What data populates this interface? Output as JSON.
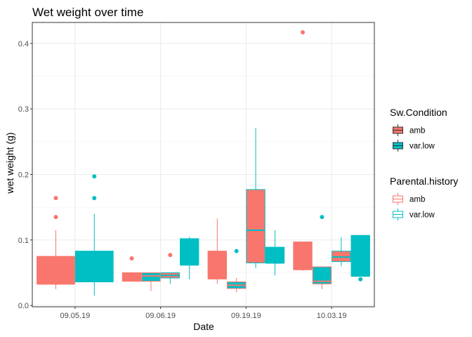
{
  "chart_data": {
    "type": "boxplot",
    "title": "Wet weight over time",
    "xlabel": "Date",
    "ylabel": "wet weight (g)",
    "categories": [
      "09.05.19",
      "09.06.19",
      "09.19.19",
      "10.03.19"
    ],
    "ylim": [
      -0.002,
      0.432
    ],
    "yticks": [
      0.0,
      0.1,
      0.2,
      0.3,
      0.4
    ],
    "ytick_labels": [
      "0.0",
      "0.1",
      "0.2",
      "0.3",
      "0.4"
    ],
    "grid": true,
    "legend_position": "right",
    "fill_legend": {
      "title": "Sw.Condition",
      "entries": [
        {
          "label": "amb",
          "color": "#F8766D"
        },
        {
          "label": "var.low",
          "color": "#00BFC4"
        }
      ]
    },
    "outline_legend": {
      "title": "Parental.history",
      "entries": [
        {
          "label": "amb",
          "color": "#F8766D"
        },
        {
          "label": "var.low",
          "color": "#00BFC4"
        }
      ]
    },
    "boxes": [
      {
        "date": "09.05.19",
        "sw_condition": "amb",
        "parental_history": "amb",
        "min": 0.025,
        "q1": 0.033,
        "median": 0.033,
        "q3": 0.075,
        "max": 0.115,
        "outliers": [
          0.135,
          0.164
        ]
      },
      {
        "date": "09.05.19",
        "sw_condition": "var.low",
        "parental_history": "var.low",
        "min": 0.015,
        "q1": 0.036,
        "median": 0.057,
        "q3": 0.083,
        "max": 0.14,
        "outliers": [
          0.164,
          0.197
        ]
      },
      {
        "date": "09.06.19",
        "sw_condition": "amb",
        "parental_history": "amb",
        "min": 0.037,
        "q1": 0.037,
        "median": 0.047,
        "q3": 0.05,
        "max": 0.05,
        "outliers": [
          0.072
        ]
      },
      {
        "date": "09.06.19",
        "sw_condition": "var.low",
        "parental_history": "amb",
        "min": 0.022,
        "q1": 0.037,
        "median": 0.045,
        "q3": 0.05,
        "max": 0.05,
        "outliers": []
      },
      {
        "date": "09.06.19",
        "sw_condition": "amb",
        "parental_history": "var.low",
        "min": 0.033,
        "q1": 0.042,
        "median": 0.046,
        "q3": 0.05,
        "max": 0.05,
        "outliers": [
          0.077
        ]
      },
      {
        "date": "09.06.19",
        "sw_condition": "var.low",
        "parental_history": "var.low",
        "min": 0.04,
        "q1": 0.062,
        "median": 0.062,
        "q3": 0.102,
        "max": 0.105,
        "outliers": []
      },
      {
        "date": "09.19.19",
        "sw_condition": "amb",
        "parental_history": "amb",
        "min": 0.033,
        "q1": 0.041,
        "median": 0.041,
        "q3": 0.083,
        "max": 0.133,
        "outliers": []
      },
      {
        "date": "09.19.19",
        "sw_condition": "var.low",
        "parental_history": "amb",
        "min": 0.02,
        "q1": 0.026,
        "median": 0.031,
        "q3": 0.036,
        "max": 0.042,
        "outliers": [
          0.083
        ]
      },
      {
        "date": "09.19.19",
        "sw_condition": "amb",
        "parental_history": "var.low",
        "min": 0.057,
        "q1": 0.065,
        "median": 0.115,
        "q3": 0.177,
        "max": 0.271,
        "outliers": []
      },
      {
        "date": "09.19.19",
        "sw_condition": "var.low",
        "parental_history": "var.low",
        "min": 0.046,
        "q1": 0.065,
        "median": 0.065,
        "q3": 0.089,
        "max": 0.115,
        "outliers": []
      },
      {
        "date": "10.03.19",
        "sw_condition": "amb",
        "parental_history": "amb",
        "min": 0.053,
        "q1": 0.055,
        "median": 0.055,
        "q3": 0.097,
        "max": 0.097,
        "outliers": [
          0.417
        ]
      },
      {
        "date": "10.03.19",
        "sw_condition": "var.low",
        "parental_history": "amb",
        "min": 0.025,
        "q1": 0.033,
        "median": 0.037,
        "q3": 0.059,
        "max": 0.059,
        "outliers": [
          0.135
        ]
      },
      {
        "date": "10.03.19",
        "sw_condition": "amb",
        "parental_history": "var.low",
        "min": 0.06,
        "q1": 0.067,
        "median": 0.074,
        "q3": 0.083,
        "max": 0.104,
        "outliers": []
      },
      {
        "date": "10.03.19",
        "sw_condition": "var.low",
        "parental_history": "var.low",
        "min": 0.045,
        "q1": 0.045,
        "median": 0.045,
        "q3": 0.107,
        "max": 0.107,
        "outliers": [
          0.04
        ]
      }
    ]
  }
}
